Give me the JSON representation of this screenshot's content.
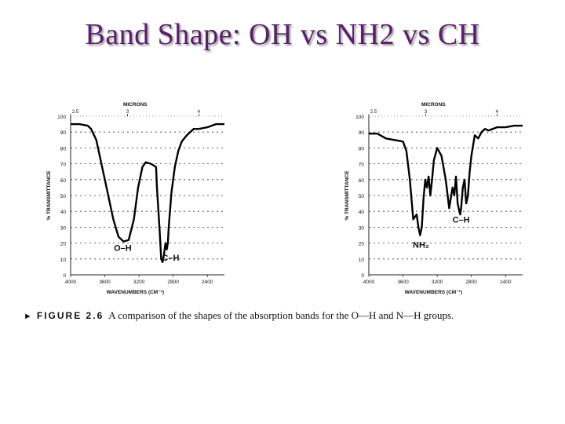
{
  "slide": {
    "title": "Band Shape: OH vs NH2 vs CH",
    "accent_color": "#5a1f6b"
  },
  "caption": {
    "marker": "►",
    "figure_label": "FIGURE 2.6",
    "text": "A comparison of the shapes of the absorption bands for the O—H and N—H groups."
  },
  "chart_data": [
    {
      "type": "line",
      "name": "O-H spectrum",
      "ylabel": "% TRANSMITTANCE",
      "xlabel": "WAVENUMBERS (CM⁻¹)",
      "top_label": "MICRONS",
      "x_ticks": [
        "4000",
        "3600",
        "3200",
        "2800",
        "2400"
      ],
      "x_tick_values": [
        4000,
        3600,
        3200,
        2800,
        2400
      ],
      "y_ticks": [
        "0",
        "10",
        "20",
        "30",
        "40",
        "50",
        "60",
        "70",
        "80",
        "90",
        "100"
      ],
      "micron_ticks": [
        "2.5",
        "3",
        "4"
      ],
      "micron_values": [
        2.5,
        3,
        4
      ],
      "xlim": [
        4000,
        2200
      ],
      "ylim": [
        0,
        100
      ],
      "annotations": [
        "O–H",
        "C–H"
      ],
      "annotation_points": [
        [
          3390,
          15
        ],
        [
          2830,
          9
        ]
      ],
      "x": [
        4000,
        3900,
        3800,
        3760,
        3700,
        3600,
        3500,
        3440,
        3380,
        3320,
        3260,
        3210,
        3160,
        3120,
        3060,
        3000,
        2990,
        2960,
        2940,
        2925,
        2910,
        2890,
        2875,
        2862,
        2852,
        2820,
        2780,
        2740,
        2700,
        2640,
        2600,
        2560,
        2500,
        2400,
        2300,
        2200
      ],
      "y": [
        95,
        95,
        94,
        92,
        85,
        60,
        35,
        24,
        21,
        22,
        35,
        55,
        68,
        71,
        70,
        68,
        55,
        30,
        10,
        8,
        12,
        20,
        16,
        20,
        30,
        52,
        68,
        78,
        84,
        88,
        90,
        92,
        92,
        93,
        95,
        95
      ]
    },
    {
      "type": "line",
      "name": "N-H spectrum",
      "ylabel": "% TRANSMITTANCE",
      "xlabel": "WAVENUMBERS (CM⁻¹)",
      "top_label": "MICRONS",
      "x_ticks": [
        "4000",
        "3600",
        "3200",
        "2800",
        "2400"
      ],
      "x_tick_values": [
        4000,
        3600,
        3200,
        2800,
        2400
      ],
      "y_ticks": [
        "0",
        "10",
        "20",
        "30",
        "40",
        "50",
        "60",
        "70",
        "80",
        "90",
        "100"
      ],
      "micron_ticks": [
        "2.5",
        "3",
        "4"
      ],
      "micron_values": [
        2.5,
        3,
        4
      ],
      "xlim": [
        4000,
        2200
      ],
      "ylim": [
        0,
        100
      ],
      "annotations": [
        "NH₂",
        "C–H"
      ],
      "annotation_points": [
        [
          3390,
          17
        ],
        [
          2920,
          33
        ]
      ],
      "x": [
        4000,
        3900,
        3800,
        3700,
        3600,
        3560,
        3520,
        3480,
        3440,
        3420,
        3400,
        3380,
        3360,
        3340,
        3320,
        3300,
        3280,
        3260,
        3240,
        3200,
        3150,
        3100,
        3060,
        3020,
        3000,
        2980,
        2960,
        2940,
        2930,
        2920,
        2900,
        2880,
        2860,
        2840,
        2820,
        2800,
        2760,
        2720,
        2680,
        2640,
        2600,
        2500,
        2400,
        2300,
        2200
      ],
      "y": [
        89,
        89,
        86,
        85,
        84,
        78,
        60,
        35,
        38,
        30,
        25,
        30,
        48,
        60,
        55,
        62,
        50,
        60,
        72,
        80,
        75,
        60,
        42,
        55,
        50,
        62,
        45,
        40,
        38,
        42,
        55,
        60,
        45,
        50,
        65,
        75,
        88,
        86,
        90,
        92,
        91,
        93,
        93,
        94,
        94
      ]
    }
  ]
}
